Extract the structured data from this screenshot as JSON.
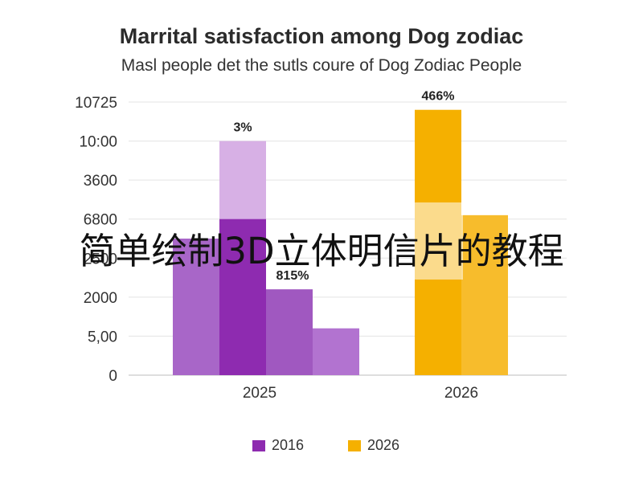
{
  "chart_data": {
    "type": "bar",
    "title": "Marrital satisfaction among Dog zodiac",
    "subtitle": "Masl people det the sutls coure of Dog Zodiac People",
    "y_tick_labels": [
      "0",
      "5,00",
      "2000",
      "2500",
      "6800",
      "3600",
      "10:00",
      "10725"
    ],
    "categories": [
      "2025",
      "2026"
    ],
    "series": [
      {
        "name": "2016",
        "color": "#8e2bb0",
        "values": [
          2000,
          0
        ]
      },
      {
        "name": "2026",
        "color": "#f5b000",
        "values": [
          0,
          3400
        ]
      }
    ],
    "bar_groups": [
      {
        "category": "2025",
        "bars": [
          {
            "value": 1750,
            "color": "#a866c8"
          },
          {
            "value": 2000,
            "overlay_value": 3000,
            "color": "#8e2bb0",
            "overlay_color": "#d7b0e5",
            "label": "3%"
          },
          {
            "value": 1100,
            "color": "#a058c0",
            "label": "815%"
          },
          {
            "value": 600,
            "color": "#b273d0"
          }
        ]
      },
      {
        "category": "2026",
        "bars": [
          {
            "value": 3400,
            "color": "#f5b000",
            "label": "466%"
          },
          {
            "value": 2050,
            "color": "#f7bc2c"
          }
        ]
      }
    ],
    "grid": true,
    "legend_position": "bottom"
  },
  "overlay_text": "简单绘制3D立体明信片的教程"
}
